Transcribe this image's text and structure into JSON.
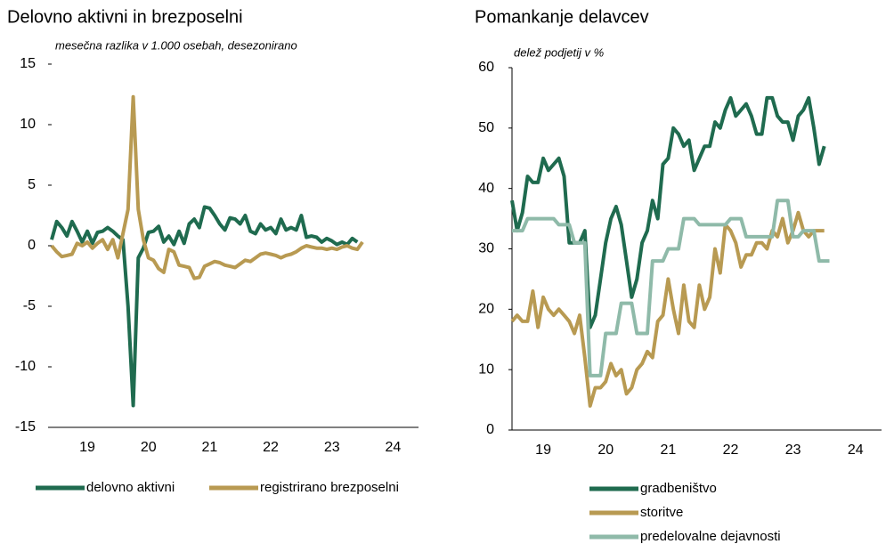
{
  "chart_data": [
    {
      "type": "line",
      "title": "Delovno aktivni in brezposelni",
      "subtitle": "mesečna razlika v 1.000 osebah, desezonirano",
      "categories": [
        null,
        null,
        null,
        null,
        null,
        null,
        null,
        "19",
        null,
        null,
        null,
        null,
        null,
        null,
        null,
        null,
        null,
        null,
        null,
        "20",
        null,
        null,
        null,
        null,
        null,
        null,
        null,
        null,
        null,
        null,
        null,
        "21",
        null,
        null,
        null,
        null,
        null,
        null,
        null,
        null,
        null,
        null,
        null,
        "22",
        null,
        null,
        null,
        null,
        null,
        null,
        null,
        null,
        null,
        null,
        null,
        "23",
        null,
        null,
        null,
        null,
        null,
        null,
        null,
        null,
        null,
        null,
        null,
        "24",
        null,
        null,
        null,
        null,
        null
      ],
      "ylim": [
        -15,
        15
      ],
      "yticks": [
        -15,
        -10,
        -5,
        0,
        5,
        10,
        15
      ],
      "series": [
        {
          "name": "delovno aktivni",
          "color": "#1f6b4f",
          "values": [
            0.5,
            2,
            1.5,
            0.8,
            2,
            1.2,
            0.3,
            1.2,
            0.2,
            1.1,
            1.2,
            1.5,
            1.2,
            0.8,
            0.5,
            -5,
            -13.2,
            -1,
            -0.2,
            1.1,
            1.2,
            1.6,
            0.3,
            0.8,
            0.1,
            1.2,
            0.2,
            1.8,
            2.2,
            1.5,
            3.2,
            3.1,
            2.5,
            1.8,
            1.3,
            2.3,
            2.2,
            1.8,
            2.5,
            1.2,
            1,
            1.8,
            1.3,
            1.5,
            1,
            2.2,
            1.3,
            1.5,
            1.3,
            2.5,
            0.7,
            0.8,
            0.7,
            0.3,
            0.6,
            0.4,
            0.1,
            0.3,
            0.1,
            0.6,
            0.3,
            null,
            null,
            null,
            null,
            null,
            null,
            null,
            null,
            null,
            null,
            null,
            null
          ]
        },
        {
          "name": "registrirano brezposelni",
          "color": "#b89a52",
          "values": [
            0,
            -0.5,
            -0.9,
            -0.8,
            -0.7,
            0.2,
            0,
            0.3,
            -0.2,
            0.2,
            0.5,
            -0.3,
            0.5,
            -1,
            1,
            3,
            12.3,
            3,
            0.5,
            -1,
            -1.2,
            -1.9,
            -2.2,
            -0.3,
            -0.5,
            -1.6,
            -1.7,
            -1.8,
            -2.7,
            -2.6,
            -1.7,
            -1.5,
            -1.3,
            -1.4,
            -1.6,
            -1.7,
            -1.8,
            -1.5,
            -1.2,
            -1.3,
            -1,
            -0.7,
            -0.6,
            -0.7,
            -0.8,
            -1,
            -0.8,
            -0.7,
            -0.5,
            -0.2,
            0,
            -0.1,
            -0.2,
            -0.2,
            -0.3,
            -0.2,
            -0.3,
            -0.1,
            0,
            -0.2,
            -0.3,
            0.3,
            null,
            null,
            null,
            null,
            null,
            null,
            null,
            null,
            null,
            null,
            null
          ]
        }
      ]
    },
    {
      "type": "line",
      "title": "Pomankanje delavcev",
      "subtitle": "delež podjetij v %",
      "categories": [
        null,
        null,
        null,
        null,
        null,
        null,
        "19",
        null,
        null,
        null,
        null,
        null,
        null,
        null,
        null,
        null,
        null,
        null,
        "20",
        null,
        null,
        null,
        null,
        null,
        null,
        null,
        null,
        null,
        null,
        null,
        "21",
        null,
        null,
        null,
        null,
        null,
        null,
        null,
        null,
        null,
        null,
        null,
        "22",
        null,
        null,
        null,
        null,
        null,
        null,
        null,
        null,
        null,
        null,
        null,
        "23",
        null,
        null,
        null,
        null,
        null,
        null,
        null,
        null,
        null,
        null,
        null,
        "24",
        null,
        null,
        null,
        null,
        null
      ],
      "ylim": [
        0,
        60
      ],
      "yticks": [
        0,
        10,
        20,
        30,
        40,
        50,
        60
      ],
      "series": [
        {
          "name": "gradbeništvo",
          "color": "#1f6b4f",
          "values": [
            38,
            33,
            36,
            42,
            41,
            41,
            45,
            43,
            44,
            45,
            42,
            31,
            31,
            31,
            33,
            17,
            19,
            25,
            31,
            35,
            37,
            34,
            28,
            22,
            25,
            31,
            33,
            38,
            35,
            44,
            45,
            50,
            49,
            47,
            48,
            43,
            45,
            47,
            47,
            51,
            50,
            53,
            55,
            52,
            53,
            54,
            52,
            49,
            49,
            55,
            55,
            52,
            51,
            51,
            48,
            52,
            53,
            55,
            50,
            44,
            47,
            null,
            null,
            null,
            null,
            null,
            null,
            null,
            null,
            null,
            null,
            null
          ]
        },
        {
          "name": "storitve",
          "color": "#b89a52",
          "values": [
            18,
            19,
            18,
            18,
            23,
            17,
            22,
            20,
            19,
            20,
            19,
            18,
            16,
            19,
            12,
            4,
            7,
            7,
            8,
            11,
            9,
            10,
            6,
            7,
            10,
            11,
            13,
            12,
            18,
            19,
            25,
            20,
            16,
            24,
            18,
            17,
            24,
            20,
            22,
            30,
            26,
            34,
            33,
            31,
            27,
            29,
            29,
            31,
            31,
            30,
            33,
            32,
            35,
            31,
            33,
            36,
            33,
            32,
            33,
            33,
            33,
            null,
            null,
            null,
            null,
            null,
            null,
            null,
            null,
            null,
            null,
            null
          ]
        },
        {
          "name": "predelovalne dejavnosti",
          "color": "#8fbaa9",
          "values": [
            33,
            33,
            33,
            35,
            35,
            35,
            35,
            35,
            35,
            34,
            34,
            34,
            31,
            31,
            31,
            9,
            9,
            9,
            16,
            16,
            16,
            21,
            21,
            21,
            16,
            16,
            16,
            28,
            28,
            28,
            30,
            30,
            30,
            35,
            35,
            35,
            34,
            34,
            34,
            34,
            34,
            34,
            35,
            35,
            35,
            32,
            32,
            32,
            32,
            32,
            32,
            38,
            38,
            38,
            32,
            32,
            33,
            33,
            33,
            28,
            28,
            28,
            null,
            null,
            null,
            null,
            null,
            null,
            null,
            null,
            null,
            null
          ]
        }
      ]
    }
  ]
}
